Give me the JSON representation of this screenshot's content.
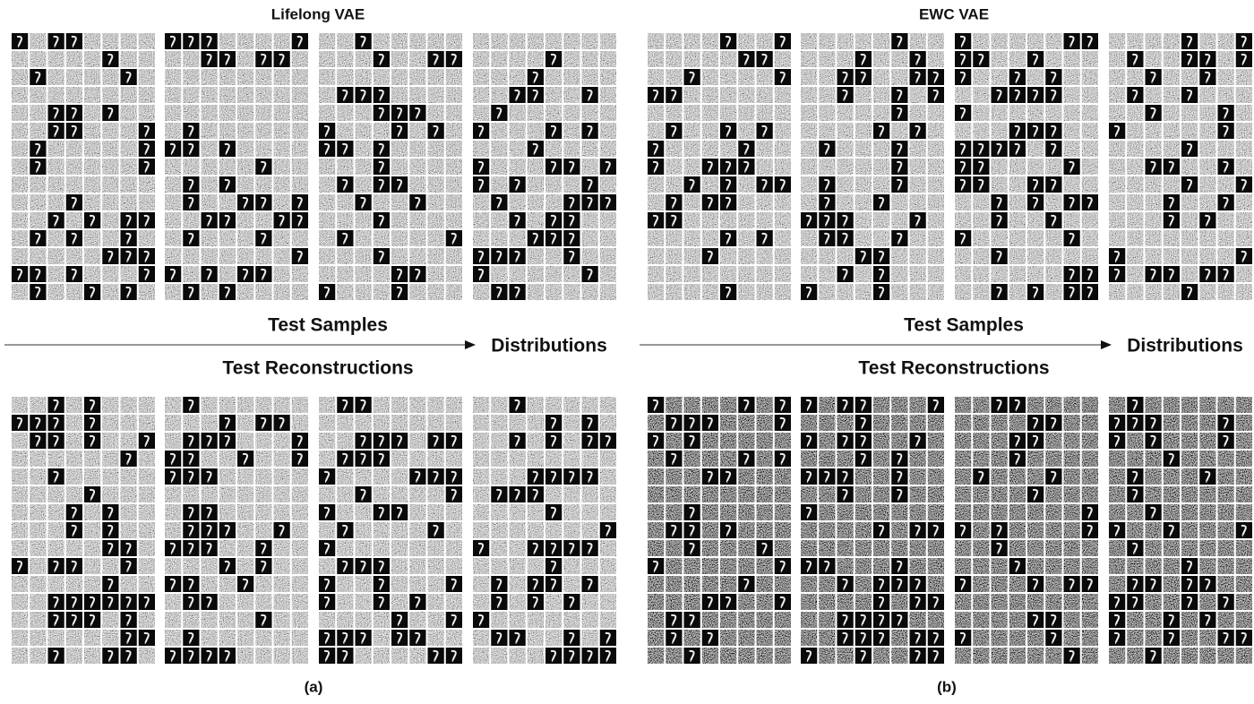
{
  "panels": [
    {
      "title": "Lifelong VAE",
      "samples_label": "Test Samples",
      "axis_label": "Distributions",
      "reconstructions_label": "Test Reconstructions",
      "caption": "(a)"
    },
    {
      "title": "EWC VAE",
      "samples_label": "Test Samples",
      "axis_label": "Distributions",
      "reconstructions_label": "Test Reconstructions",
      "caption": "(b)"
    }
  ]
}
